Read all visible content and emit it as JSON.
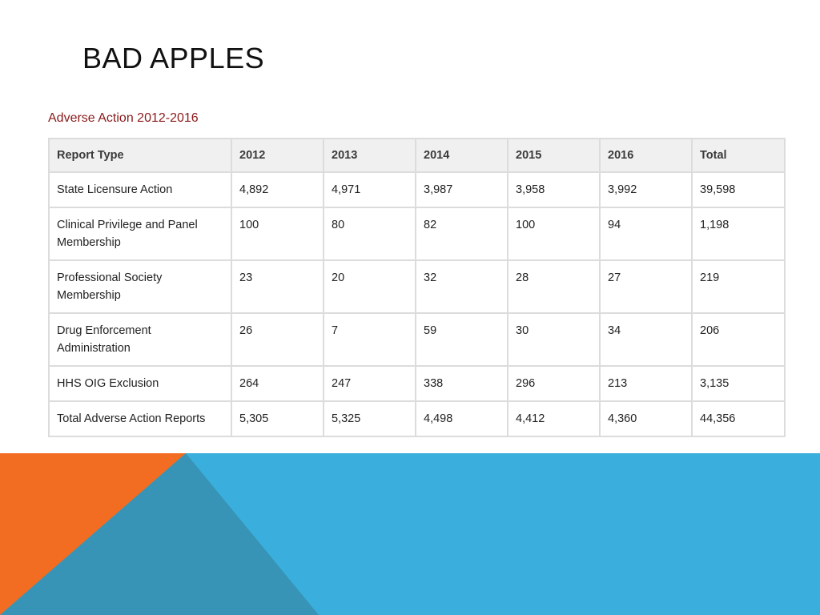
{
  "slide": {
    "title": "BAD APPLES"
  },
  "table": {
    "caption": "Adverse Action 2012-2016",
    "headers": [
      "Report Type",
      "2012",
      "2013",
      "2014",
      "2015",
      "2016",
      "Total"
    ],
    "rows": [
      [
        "State Licensure Action",
        "4,892",
        "4,971",
        "3,987",
        "3,958",
        "3,992",
        "39,598"
      ],
      [
        "Clinical Privilege and Panel Membership",
        "100",
        "80",
        "82",
        "100",
        "94",
        "1,198"
      ],
      [
        "Professional Society Membership",
        "23",
        "20",
        "32",
        "28",
        "27",
        "219"
      ],
      [
        "Drug Enforcement Administration",
        "26",
        "7",
        "59",
        "30",
        "34",
        "206"
      ],
      [
        "HHS OIG Exclusion",
        "264",
        "247",
        "338",
        "296",
        "213",
        "3,135"
      ],
      [
        "Total Adverse Action Reports",
        "5,305",
        "5,325",
        "4,498",
        "4,412",
        "4,360",
        "44,356"
      ]
    ]
  },
  "theme": {
    "orange": "#f26d21",
    "blue": "#3aaedc",
    "blue_dark": "#3794b6",
    "caption_color": "#8b1a1a"
  }
}
